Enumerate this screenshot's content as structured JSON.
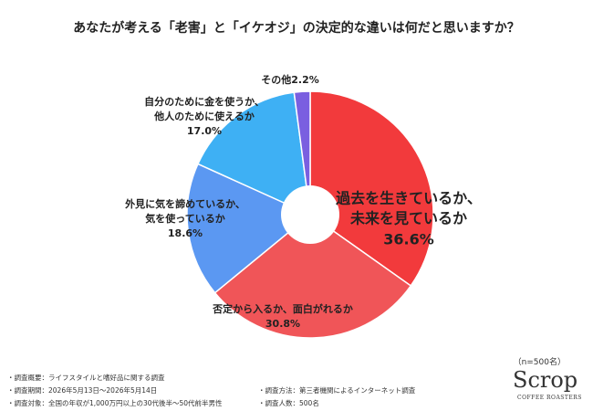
{
  "chart_data": {
    "type": "pie",
    "title": "あなたが考える「老害」と「イケオジ」の決定的な違いは何だと思いますか？",
    "categories": [
      "過去を生きているか、\n未来を見ているか",
      "否定から入るか、面白がれるか",
      "外見に気を諦めているか、\n気を使っているか",
      "自分のために金を使うか、\n他人のために使えるか",
      "その他"
    ],
    "values": [
      36.6,
      30.8,
      18.6,
      17.0,
      2.2
    ],
    "value_labels": [
      "36.6%",
      "30.8%",
      "18.6%",
      "17.0%",
      "2.2%"
    ],
    "colors": [
      "#f23a3c",
      "#f05558",
      "#5b98f2",
      "#3eb0f4",
      "#7a5fe0"
    ],
    "donut": true,
    "sample_note": "（n=500名）",
    "notes_left": [
      "・調査概要：ライフスタイルと嗜好品に関する調査",
      "・調査期間：2026年5月13日〜2026年5月14日",
      "・調査対象：全国の年収が1,000万円以上の30代後半〜50代前半男性"
    ],
    "notes_right": [
      "・調査方法：第三者機関によるインターネット調査",
      "・調査人数：500名"
    ],
    "logo": "Scrop",
    "logo_sub": "COFFEE ROASTERS"
  }
}
